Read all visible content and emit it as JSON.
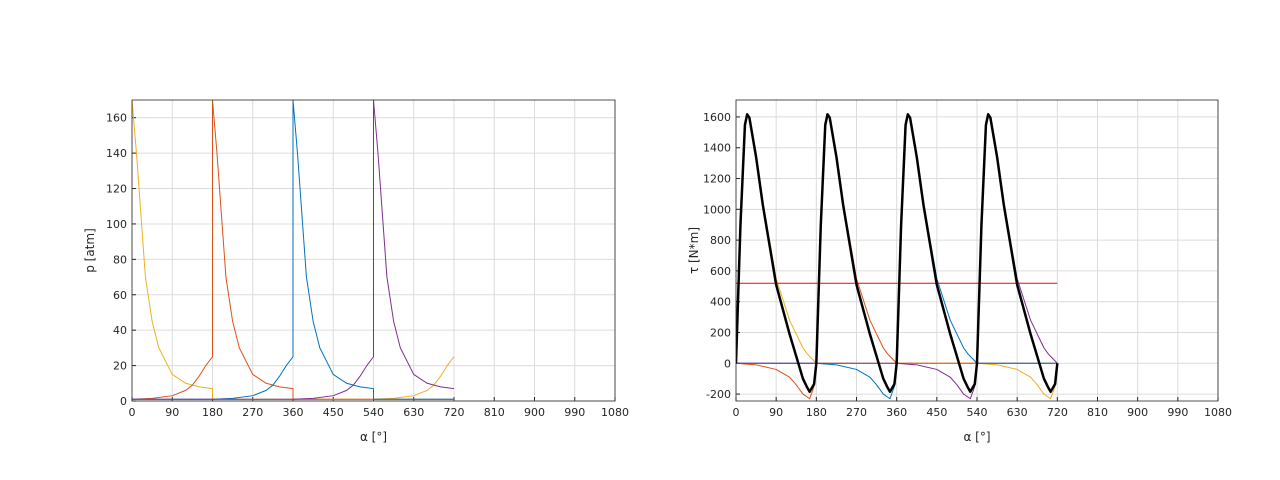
{
  "chart_data": [
    {
      "type": "line",
      "xlabel": "α [°]",
      "ylabel": "p [atm]",
      "grid": true,
      "xlim": [
        0,
        1080
      ],
      "xticks": [
        0,
        90,
        180,
        270,
        360,
        450,
        540,
        630,
        720,
        810,
        900,
        990,
        1080
      ],
      "ylim": [
        0,
        170
      ],
      "yticks": [
        0,
        20,
        40,
        60,
        80,
        100,
        120,
        140,
        160
      ],
      "series": [
        {
          "color": "#EDB120",
          "x": [
            0,
            10,
            30,
            45,
            60,
            90,
            120,
            150,
            180,
            180,
            540,
            585,
            630,
            660,
            675,
            690,
            705,
            720
          ],
          "values": [
            170,
            140,
            70,
            45,
            30,
            15,
            10,
            8,
            7,
            1,
            1,
            1.5,
            3,
            6,
            9,
            14,
            20,
            25
          ]
        },
        {
          "color": "#D95319",
          "x": [
            0,
            45,
            90,
            120,
            135,
            150,
            165,
            180,
            180,
            190,
            210,
            225,
            240,
            270,
            300,
            330,
            360,
            360,
            720
          ],
          "values": [
            1,
            1.5,
            3,
            6,
            9,
            14,
            20,
            25,
            170,
            140,
            70,
            45,
            30,
            15,
            10,
            8,
            7,
            1,
            1
          ]
        },
        {
          "color": "#0072BD",
          "x": [
            0,
            180,
            225,
            270,
            300,
            315,
            330,
            345,
            360,
            360,
            370,
            390,
            405,
            420,
            450,
            480,
            510,
            540,
            540,
            720
          ],
          "values": [
            1,
            1,
            1.5,
            3,
            6,
            9,
            14,
            20,
            25,
            170,
            140,
            70,
            45,
            30,
            15,
            10,
            8,
            7,
            1,
            1
          ]
        },
        {
          "color": "#7E2F8E",
          "x": [
            0,
            360,
            405,
            450,
            480,
            495,
            510,
            525,
            540,
            540,
            550,
            570,
            585,
            600,
            630,
            660,
            690,
            720
          ],
          "values": [
            1,
            1,
            1.5,
            3,
            6,
            9,
            14,
            20,
            25,
            170,
            140,
            70,
            45,
            30,
            15,
            10,
            8,
            7
          ]
        }
      ]
    },
    {
      "type": "line",
      "xlabel": "α [°]",
      "ylabel": "τ [N*m]",
      "grid": true,
      "xlim": [
        0,
        1080
      ],
      "xticks": [
        0,
        90,
        180,
        270,
        360,
        450,
        540,
        630,
        720,
        810,
        900,
        990,
        1080
      ],
      "ylim": [
        -245,
        1710
      ],
      "yticks": [
        -200,
        0,
        200,
        400,
        600,
        800,
        1000,
        1200,
        1400,
        1600
      ],
      "series": [
        {
          "color": "#EDB120",
          "x": [
            0,
            5,
            10,
            20,
            25,
            30,
            45,
            60,
            90,
            120,
            150,
            160,
            165,
            175,
            180,
            540,
            585,
            600,
            630,
            660,
            675,
            690,
            700,
            705,
            715,
            720
          ],
          "values": [
            0,
            450,
            900,
            1550,
            1620,
            1600,
            1350,
            1050,
            550,
            280,
            100,
            60,
            45,
            15,
            0,
            0,
            -10,
            -20,
            -40,
            -90,
            -140,
            -200,
            -220,
            -230,
            -150,
            0
          ]
        },
        {
          "color": "#D95319",
          "x": [
            0,
            45,
            60,
            90,
            120,
            135,
            150,
            160,
            165,
            175,
            180,
            185,
            190,
            200,
            205,
            210,
            225,
            240,
            270,
            300,
            330,
            340,
            345,
            355,
            360,
            720
          ],
          "values": [
            0,
            -10,
            -20,
            -40,
            -90,
            -140,
            -200,
            -220,
            -230,
            -150,
            0,
            450,
            900,
            1550,
            1620,
            1600,
            1350,
            1050,
            550,
            280,
            100,
            60,
            45,
            15,
            0,
            0
          ]
        },
        {
          "color": "#0072BD",
          "x": [
            0,
            180,
            225,
            240,
            270,
            300,
            315,
            330,
            340,
            345,
            355,
            360,
            365,
            370,
            380,
            385,
            390,
            405,
            420,
            450,
            480,
            510,
            520,
            525,
            535,
            540,
            720
          ],
          "values": [
            0,
            0,
            -10,
            -20,
            -40,
            -90,
            -140,
            -200,
            -220,
            -230,
            -150,
            0,
            450,
            900,
            1550,
            1620,
            1600,
            1350,
            1050,
            550,
            280,
            100,
            60,
            45,
            15,
            0,
            0
          ]
        },
        {
          "color": "#7E2F8E",
          "x": [
            0,
            360,
            405,
            420,
            450,
            480,
            495,
            510,
            520,
            525,
            535,
            540,
            545,
            550,
            560,
            565,
            570,
            585,
            600,
            630,
            660,
            690,
            700,
            705,
            715,
            720
          ],
          "values": [
            0,
            0,
            -10,
            -20,
            -40,
            -90,
            -140,
            -200,
            -220,
            -230,
            -150,
            0,
            450,
            900,
            1550,
            1620,
            1600,
            1350,
            1050,
            550,
            280,
            100,
            60,
            45,
            15,
            0
          ]
        },
        {
          "color": "#FF0000",
          "x": [
            0,
            720
          ],
          "values": [
            520,
            520
          ]
        },
        {
          "color": "#000000",
          "line_width": 2.5,
          "x": [
            0,
            5,
            10,
            20,
            25,
            30,
            45,
            60,
            90,
            120,
            150,
            160,
            165,
            175,
            180,
            185,
            190,
            200,
            205,
            210,
            225,
            240,
            270,
            300,
            330,
            340,
            345,
            355,
            360,
            365,
            370,
            380,
            385,
            390,
            405,
            420,
            450,
            480,
            510,
            520,
            525,
            535,
            540,
            545,
            550,
            560,
            565,
            570,
            585,
            600,
            630,
            660,
            690,
            700,
            705,
            715,
            720
          ],
          "values": [
            0,
            450,
            900,
            1548,
            1617,
            1595,
            1340,
            1030,
            510,
            190,
            -100,
            -160,
            -185,
            -135,
            0,
            450,
            900,
            1548,
            1617,
            1595,
            1340,
            1030,
            510,
            190,
            -100,
            -160,
            -185,
            -135,
            0,
            450,
            900,
            1548,
            1617,
            1595,
            1340,
            1030,
            510,
            190,
            -100,
            -160,
            -185,
            -135,
            0,
            450,
            900,
            1548,
            1617,
            1595,
            1340,
            1030,
            510,
            190,
            -100,
            -160,
            -185,
            -135,
            0
          ]
        }
      ]
    }
  ]
}
